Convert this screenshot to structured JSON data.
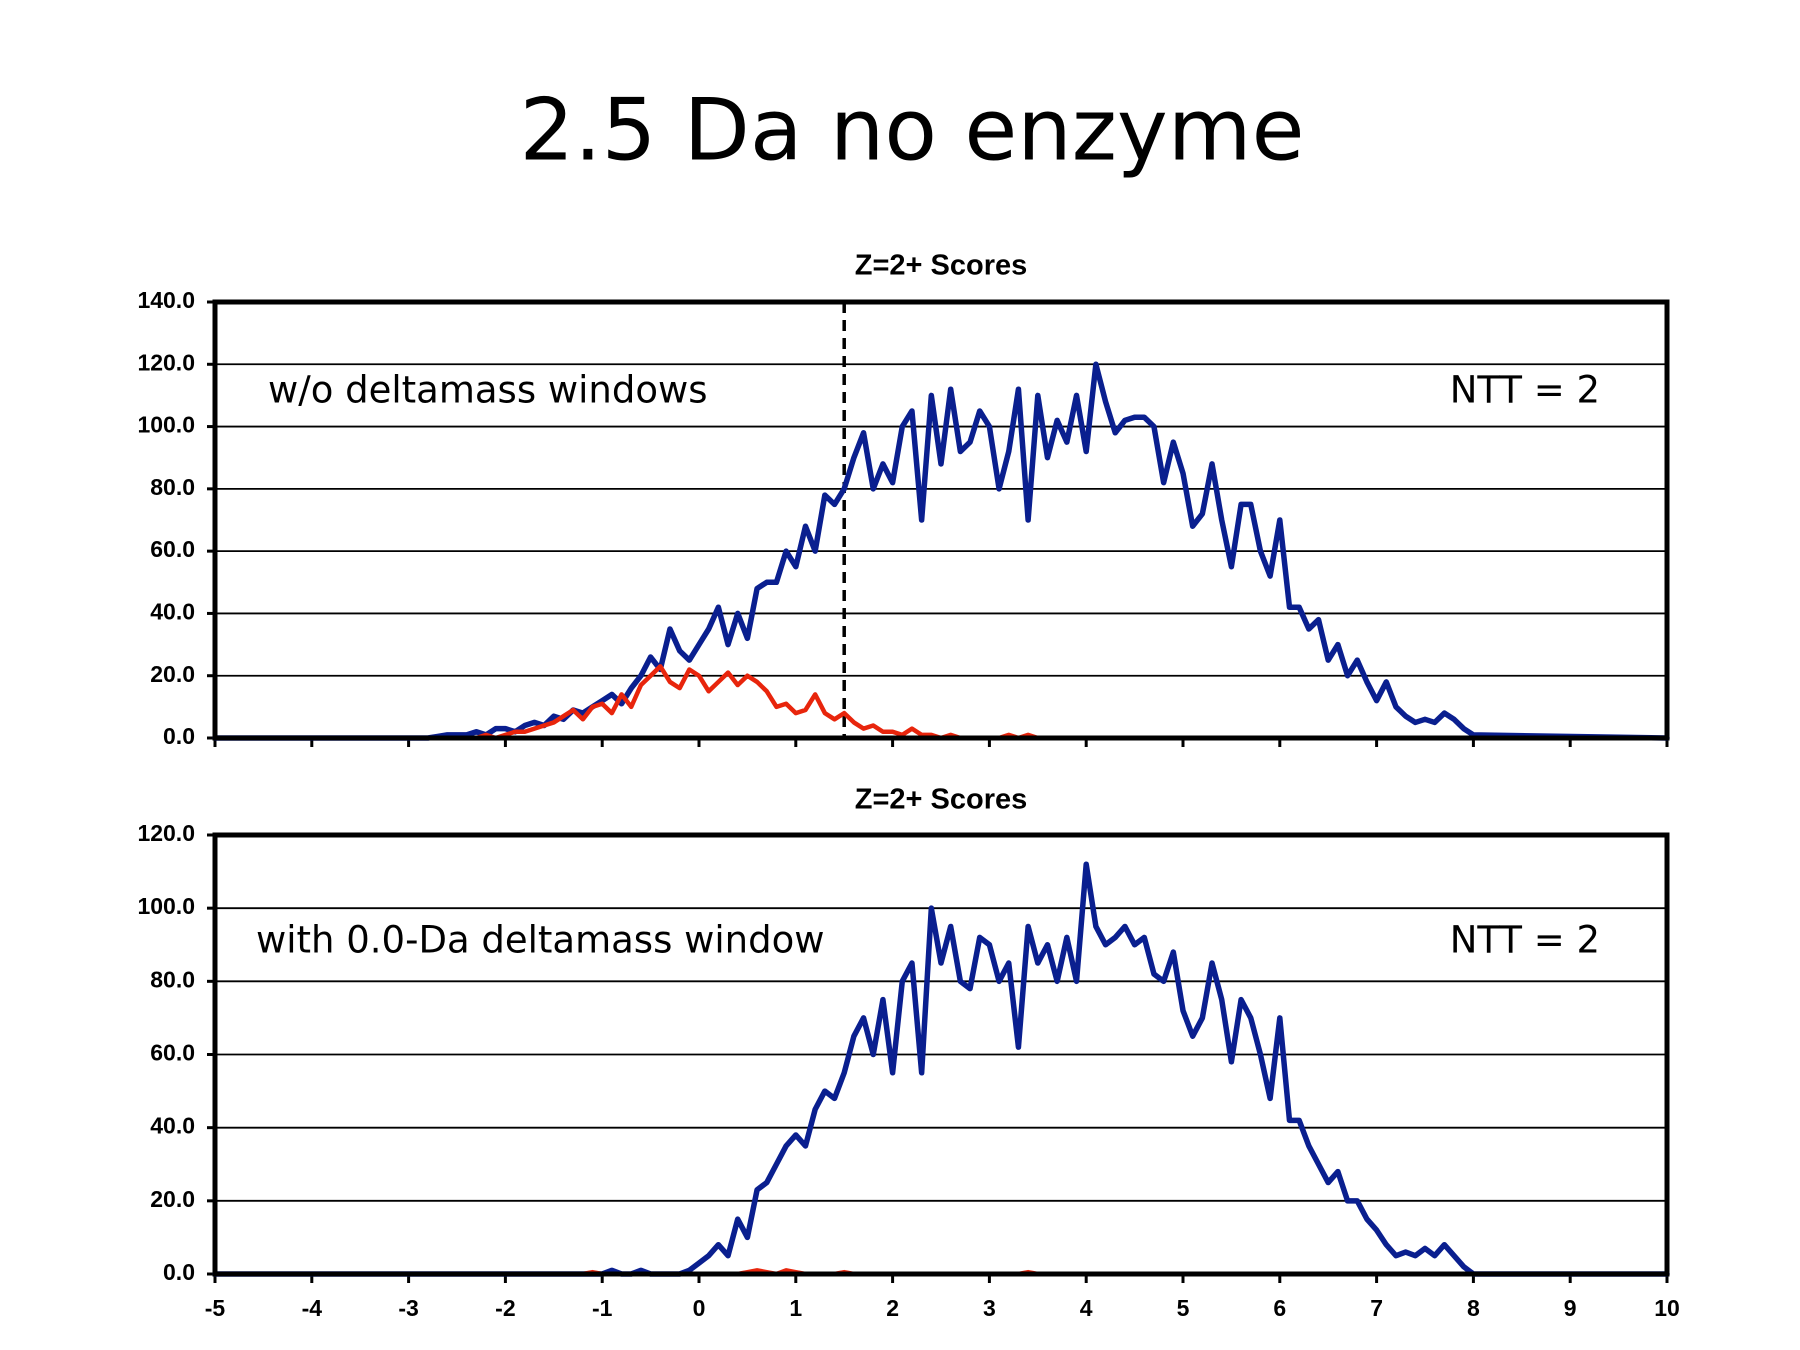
{
  "title": "2.5 Da no enzyme",
  "chart_data": [
    {
      "type": "line",
      "title": "Z=2+ Scores",
      "annotations": [
        "w/o deltamass windows",
        "NTT = 2"
      ],
      "vline": 1.5,
      "x": [
        -5,
        -3,
        -2.9,
        -2.8,
        -2.7,
        -2.6,
        -2.5,
        -2.4,
        -2.3,
        -2.2,
        -2.1,
        -2,
        -1.9,
        -1.8,
        -1.7,
        -1.6,
        -1.5,
        -1.4,
        -1.3,
        -1.2,
        -1.1,
        -1,
        -0.9,
        -0.8,
        -0.7,
        -0.6,
        -0.5,
        -0.4,
        -0.3,
        -0.2,
        -0.1,
        0,
        0.1,
        0.2,
        0.3,
        0.4,
        0.5,
        0.6,
        0.7,
        0.8,
        0.9,
        1,
        1.1,
        1.2,
        1.3,
        1.4,
        1.5,
        1.6,
        1.7,
        1.8,
        1.9,
        2,
        2.1,
        2.2,
        2.3,
        2.4,
        2.5,
        2.6,
        2.7,
        2.8,
        2.9,
        3,
        3.1,
        3.2,
        3.3,
        3.4,
        3.5,
        3.6,
        3.7,
        3.8,
        3.9,
        4,
        4.1,
        4.2,
        4.3,
        4.4,
        4.5,
        4.6,
        4.7,
        4.8,
        4.9,
        5,
        5.1,
        5.2,
        5.3,
        5.4,
        5.5,
        5.6,
        5.7,
        5.8,
        5.9,
        6,
        6.1,
        6.2,
        6.3,
        6.4,
        6.5,
        6.6,
        6.7,
        6.8,
        6.9,
        7,
        7.1,
        7.2,
        7.3,
        7.4,
        7.5,
        7.6,
        7.7,
        7.8,
        7.9,
        8,
        10
      ],
      "series": [
        {
          "color": "#0a1f8f",
          "values": [
            0,
            0,
            0,
            0,
            0.5,
            1,
            1,
            1,
            2,
            1,
            3,
            3,
            2,
            4,
            5,
            4,
            7,
            6,
            9,
            8,
            10,
            12,
            14,
            11,
            16,
            20,
            26,
            22,
            35,
            28,
            25,
            30,
            35,
            42,
            30,
            40,
            32,
            48,
            50,
            50,
            60,
            55,
            68,
            60,
            78,
            75,
            80,
            90,
            98,
            80,
            88,
            82,
            100,
            105,
            70,
            110,
            88,
            112,
            92,
            95,
            105,
            100,
            80,
            92,
            112,
            70,
            110,
            90,
            102,
            95,
            110,
            92,
            120,
            108,
            98,
            102,
            103,
            103,
            100,
            82,
            95,
            85,
            68,
            72,
            88,
            70,
            55,
            75,
            75,
            60,
            52,
            70,
            42,
            42,
            35,
            38,
            25,
            30,
            20,
            25,
            18,
            12,
            18,
            10,
            7,
            5,
            6,
            5,
            8,
            6,
            3,
            1,
            0
          ]
        },
        {
          "color": "#e8250c",
          "values": [
            0,
            0,
            0,
            0,
            0,
            0,
            0,
            0,
            0,
            1,
            0,
            1,
            2,
            2,
            3,
            4,
            5,
            7,
            9,
            6,
            10,
            11,
            8,
            14,
            10,
            17,
            20,
            23,
            18,
            16,
            22,
            20,
            15,
            18,
            21,
            17,
            20,
            18,
            15,
            10,
            11,
            8,
            9,
            14,
            8,
            6,
            8,
            5,
            3,
            4,
            2,
            2,
            1,
            3,
            1,
            1,
            0,
            1,
            0,
            0,
            0,
            0,
            0,
            1,
            0,
            1,
            0,
            0,
            0,
            0,
            0,
            0,
            0,
            0,
            0,
            0,
            0,
            0,
            0,
            0,
            0,
            0,
            0,
            0,
            0,
            0,
            0,
            0,
            0,
            0,
            0,
            0,
            0,
            0,
            0,
            0,
            0,
            0,
            0,
            0,
            0,
            0,
            0,
            0,
            0,
            0,
            0,
            0,
            0,
            0,
            0,
            0,
            0
          ]
        }
      ],
      "xlim": [
        -5,
        10
      ],
      "ylim": [
        0,
        140
      ],
      "xticks": [
        -5,
        -4,
        -3,
        -2,
        -1,
        0,
        1,
        2,
        3,
        4,
        5,
        6,
        7,
        8,
        9,
        10
      ],
      "yticks": [
        {
          "value": 0,
          "label": "0.0"
        },
        {
          "value": 20,
          "label": "20.0"
        },
        {
          "value": 40,
          "label": "40.0"
        },
        {
          "value": 60,
          "label": "60.0"
        },
        {
          "value": 80,
          "label": "80.0"
        },
        {
          "value": 100,
          "label": "100.0"
        },
        {
          "value": 120,
          "label": "120.0"
        },
        {
          "value": 140,
          "label": "140.0"
        }
      ],
      "grid": true,
      "show_xtick_labels": false
    },
    {
      "type": "line",
      "title": "Z=2+ Scores",
      "annotations": [
        "with 0.0-Da deltamass window",
        "NTT = 2"
      ],
      "x": [
        -5,
        -3,
        -2.9,
        -2.8,
        -2.7,
        -2.6,
        -2.5,
        -2.4,
        -2.3,
        -2.2,
        -2.1,
        -2,
        -1.9,
        -1.8,
        -1.7,
        -1.6,
        -1.5,
        -1.4,
        -1.3,
        -1.2,
        -1.1,
        -1,
        -0.9,
        -0.8,
        -0.7,
        -0.6,
        -0.5,
        -0.4,
        -0.3,
        -0.2,
        -0.1,
        0,
        0.1,
        0.2,
        0.3,
        0.4,
        0.5,
        0.6,
        0.7,
        0.8,
        0.9,
        1,
        1.1,
        1.2,
        1.3,
        1.4,
        1.5,
        1.6,
        1.7,
        1.8,
        1.9,
        2,
        2.1,
        2.2,
        2.3,
        2.4,
        2.5,
        2.6,
        2.7,
        2.8,
        2.9,
        3,
        3.1,
        3.2,
        3.3,
        3.4,
        3.5,
        3.6,
        3.7,
        3.8,
        3.9,
        4,
        4.1,
        4.2,
        4.3,
        4.4,
        4.5,
        4.6,
        4.7,
        4.8,
        4.9,
        5,
        5.1,
        5.2,
        5.3,
        5.4,
        5.5,
        5.6,
        5.7,
        5.8,
        5.9,
        6,
        6.1,
        6.2,
        6.3,
        6.4,
        6.5,
        6.6,
        6.7,
        6.8,
        6.9,
        7,
        7.1,
        7.2,
        7.3,
        7.4,
        7.5,
        7.6,
        7.7,
        7.8,
        7.9,
        8,
        10
      ],
      "series": [
        {
          "color": "#0a1f8f",
          "values": [
            0,
            0,
            0,
            0,
            0,
            0,
            0,
            0,
            0,
            0,
            0,
            0,
            0,
            0,
            0,
            0,
            0,
            0,
            0,
            0,
            0,
            0,
            1,
            0,
            0,
            1,
            0,
            0,
            0,
            0,
            1,
            3,
            5,
            8,
            5,
            15,
            10,
            23,
            25,
            30,
            35,
            38,
            35,
            45,
            50,
            48,
            55,
            65,
            70,
            60,
            75,
            55,
            80,
            85,
            55,
            100,
            85,
            95,
            80,
            78,
            92,
            90,
            80,
            85,
            62,
            95,
            85,
            90,
            80,
            92,
            80,
            112,
            95,
            90,
            92,
            95,
            90,
            92,
            82,
            80,
            88,
            72,
            65,
            70,
            85,
            75,
            58,
            75,
            70,
            60,
            48,
            70,
            42,
            42,
            35,
            30,
            25,
            28,
            20,
            20,
            15,
            12,
            8,
            5,
            6,
            5,
            7,
            5,
            8,
            5,
            2,
            0,
            0
          ]
        },
        {
          "color": "#e8250c",
          "values": [
            0,
            0,
            0,
            0,
            0,
            0,
            0,
            0,
            0,
            0,
            0,
            0,
            0,
            0,
            0,
            0,
            0,
            0,
            0,
            0,
            0.5,
            0,
            0,
            0,
            0,
            0,
            0,
            0,
            0,
            0,
            0,
            0,
            0,
            0,
            0,
            0,
            0.5,
            1,
            0.5,
            0,
            1,
            0.5,
            0,
            0,
            0,
            0,
            0.5,
            0,
            0,
            0,
            0,
            0,
            0,
            0,
            0,
            0,
            0,
            0,
            0,
            0,
            0,
            0,
            0,
            0,
            0,
            0.5,
            0,
            0,
            0,
            0,
            0,
            0,
            0,
            0,
            0,
            0,
            0,
            0,
            0,
            0,
            0,
            0,
            0,
            0,
            0,
            0,
            0,
            0,
            0,
            0,
            0,
            0,
            0,
            0,
            0,
            0,
            0,
            0,
            0,
            0,
            0,
            0,
            0,
            0,
            0,
            0,
            0,
            0,
            0,
            0,
            0,
            0,
            0
          ]
        }
      ],
      "xlim": [
        -5,
        10
      ],
      "ylim": [
        0,
        120
      ],
      "xticks": [
        -5,
        -4,
        -3,
        -2,
        -1,
        0,
        1,
        2,
        3,
        4,
        5,
        6,
        7,
        8,
        9,
        10
      ],
      "yticks": [
        {
          "value": 0,
          "label": "0.0"
        },
        {
          "value": 20,
          "label": "20.0"
        },
        {
          "value": 40,
          "label": "40.0"
        },
        {
          "value": 60,
          "label": "60.0"
        },
        {
          "value": 80,
          "label": "80.0"
        },
        {
          "value": 100,
          "label": "100.0"
        },
        {
          "value": 120,
          "label": "120.0"
        }
      ],
      "grid": true,
      "show_xtick_labels": true
    }
  ]
}
